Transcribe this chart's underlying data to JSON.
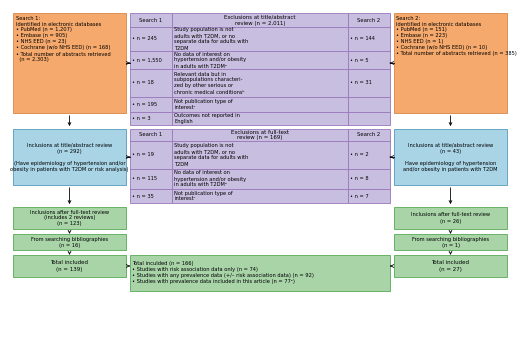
{
  "colors": {
    "orange": "#F5A96C",
    "orange_e": "#D4884A",
    "blue": "#A8D4E6",
    "blue_e": "#5599BB",
    "green": "#A8D4A8",
    "green_e": "#55AA55",
    "purple": "#C8BFE0",
    "purple_e": "#9977BB",
    "white": "#FFFFFF"
  },
  "s1_db_title": "Search 1:\nIdentified in electronic databases",
  "s1_db_body": "• PubMed (n = 1,207)\n• Embase (n = 905)\n• NHS EED (n = 23)\n• Cochrane (w/o NHS EED) (n = 168)\n• Total number of abstracts retrieved\n  (n = 2,303)",
  "s2_db_title": "Search 2:\nIdentified in electronic databases",
  "s2_db_body": "• PubMed (n = 151)\n• Embase (n = 223)\n• NHS EED (n = 1)\n• Cochrane (w/o NHS EED) (n = 10)\n• Total number of abstracts retrieved (n = 385)",
  "excl_ta_header": "Exclusions at title/abstract\nreview (n = 2,011)",
  "excl_ta_s1_label": "Search 1",
  "excl_ta_s2_label": "Search 2",
  "excl_ta_rows": [
    {
      "s1": "• n = 245",
      "text": "Study population is not\nadults with T2DM, or no\nseparate data for adults with\nT2DM",
      "s2": "• n = 144"
    },
    {
      "s1": "• n = 1,550",
      "text": "No data of interest on\nhypertension and/or obesity\nin adults with T2DMᵃ",
      "s2": "• n = 5"
    },
    {
      "s1": "• n = 18",
      "text": "Relevant data but in\nsubpopulations characteri-\nzed by other serious or\nchronic medical conditionsᵇ",
      "s2": "• n = 31"
    },
    {
      "s1": "• n = 195",
      "text": "Not publication type of\ninterestᶜ",
      "s2": ""
    },
    {
      "s1": "• n = 3",
      "text": "Outcomes not reported in\nEnglish",
      "s2": ""
    }
  ],
  "excl_ta_rh": [
    24,
    18,
    28,
    15,
    13
  ],
  "excl_ft_header": "Exclusions at full-text\nreview (n = 169)",
  "excl_ft_s1_label": "Search 1",
  "excl_ft_s2_label": "Search 2",
  "excl_ft_rows": [
    {
      "s1": "• n = 19",
      "text": "Study population is not\nadults with T2DM, or no\nseparate data for adults with\nT2DM",
      "s2": "• n = 2"
    },
    {
      "s1": "• n = 115",
      "text": "No data of interest on\nhypertension and/or obesity\nin adults with T2DMᵃ",
      "s2": "• n = 8"
    },
    {
      "s1": "• n = 35",
      "text": "Not publication type of\ninterestᶜ",
      "s2": "• n = 7"
    }
  ],
  "excl_ft_rh": [
    28,
    20,
    14
  ],
  "incl_ta_s1": "Inclusions at title/abstract review\n(n = 292)\n\n(Have epidemiology of hypertension and/or\nobesity in patients with T2DM or risk analysis)",
  "incl_ta_s2": "Inclusions at title/abstract review\n(n = 43)\n\nHave epidemiology of hypertension\nand/or obesity in patients with T2DM",
  "incl_ft_s1": "Inclusions after full-text review\n(includes 2 reviews)\n(n = 123)",
  "incl_ft_s2": "Inclusions after full-text review\n(n = 26)",
  "bib_s1": "From searching bibliographies\n(n = 16)",
  "bib_s2": "From searching bibliographies\n(n = 1)",
  "tot_s1": "Total included\n(n = 139)",
  "tot_s2": "Total included\n(n = 27)",
  "tot_center": "Total inculded (n = 166)\n• Studies with risk association data only (n = 74)\n• Studies with any prevalence data (+/– risk association data) (n = 92)\n• Studies with prevalence data included in this article (n = 77ᵉ)"
}
